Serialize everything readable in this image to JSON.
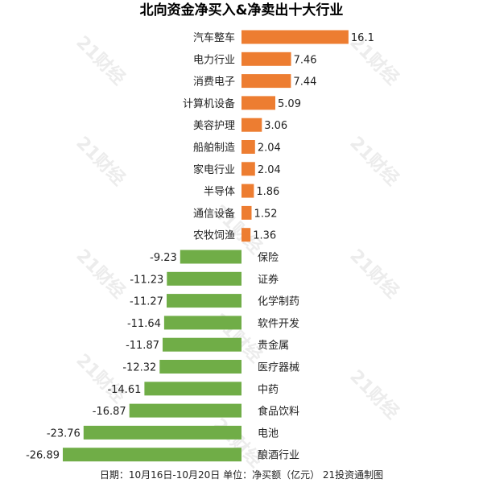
{
  "chart_data": {
    "type": "bar",
    "title": "北向资金净买入&净卖出十大行业",
    "footer": "日期：10月16日-10月20日 单位：净买额（亿元） 21投资通制图",
    "watermark": "21财经",
    "categories": [
      "汽车整车",
      "电力行业",
      "消费电子",
      "计算机设备",
      "美容护理",
      "船舶制造",
      "家电行业",
      "半导体",
      "通信设备",
      "农牧饲渔",
      "保险",
      "证券",
      "化学制药",
      "软件开发",
      "贵金属",
      "医疗器械",
      "中药",
      "食品饮料",
      "电池",
      "酿酒行业"
    ],
    "values": [
      16.1,
      7.46,
      7.44,
      5.09,
      3.06,
      2.04,
      2.04,
      1.86,
      1.52,
      1.36,
      -9.23,
      -11.23,
      -11.27,
      -11.64,
      -11.87,
      -12.32,
      -14.61,
      -16.87,
      -23.76,
      -26.89
    ],
    "value_labels": [
      "16.1",
      "7.46",
      "7.44",
      "5.09",
      "3.06",
      "2.04",
      "2.04",
      "1.86",
      "1.52",
      "1.36",
      "-9.23",
      "-11.23",
      "-11.27",
      "-11.64",
      "-11.87",
      "-12.32",
      "-14.61",
      "-16.87",
      "-23.76",
      "-26.89"
    ],
    "colors": {
      "positive": "#ED7D31",
      "negative": "#70AD47",
      "text": "#222222",
      "watermark": "#dddddd"
    },
    "xlim": [
      -26.89,
      16.1
    ],
    "grid": false,
    "legend": "none"
  }
}
